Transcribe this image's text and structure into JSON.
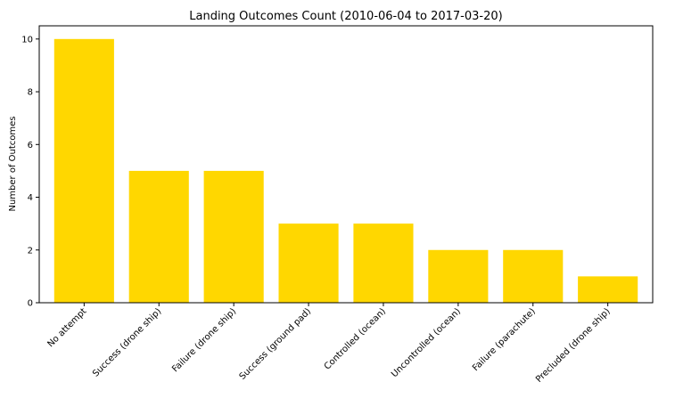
{
  "chart_data": {
    "type": "bar",
    "title": "Landing Outcomes Count (2010-06-04 to 2017-03-20)",
    "xlabel": "",
    "ylabel": "Number of Outcomes",
    "categories": [
      "No attempt",
      "Success (drone ship)",
      "Failure (drone ship)",
      "Success (ground pad)",
      "Controlled (ocean)",
      "Uncontrolled (ocean)",
      "Failure (parachute)",
      "Precluded (drone ship)"
    ],
    "values": [
      10,
      5,
      5,
      3,
      3,
      2,
      2,
      1
    ],
    "ylim": [
      0,
      10.5
    ],
    "yticks": [
      0,
      2,
      4,
      6,
      8,
      10
    ],
    "grid": false,
    "bar_color": "#FFD700"
  }
}
